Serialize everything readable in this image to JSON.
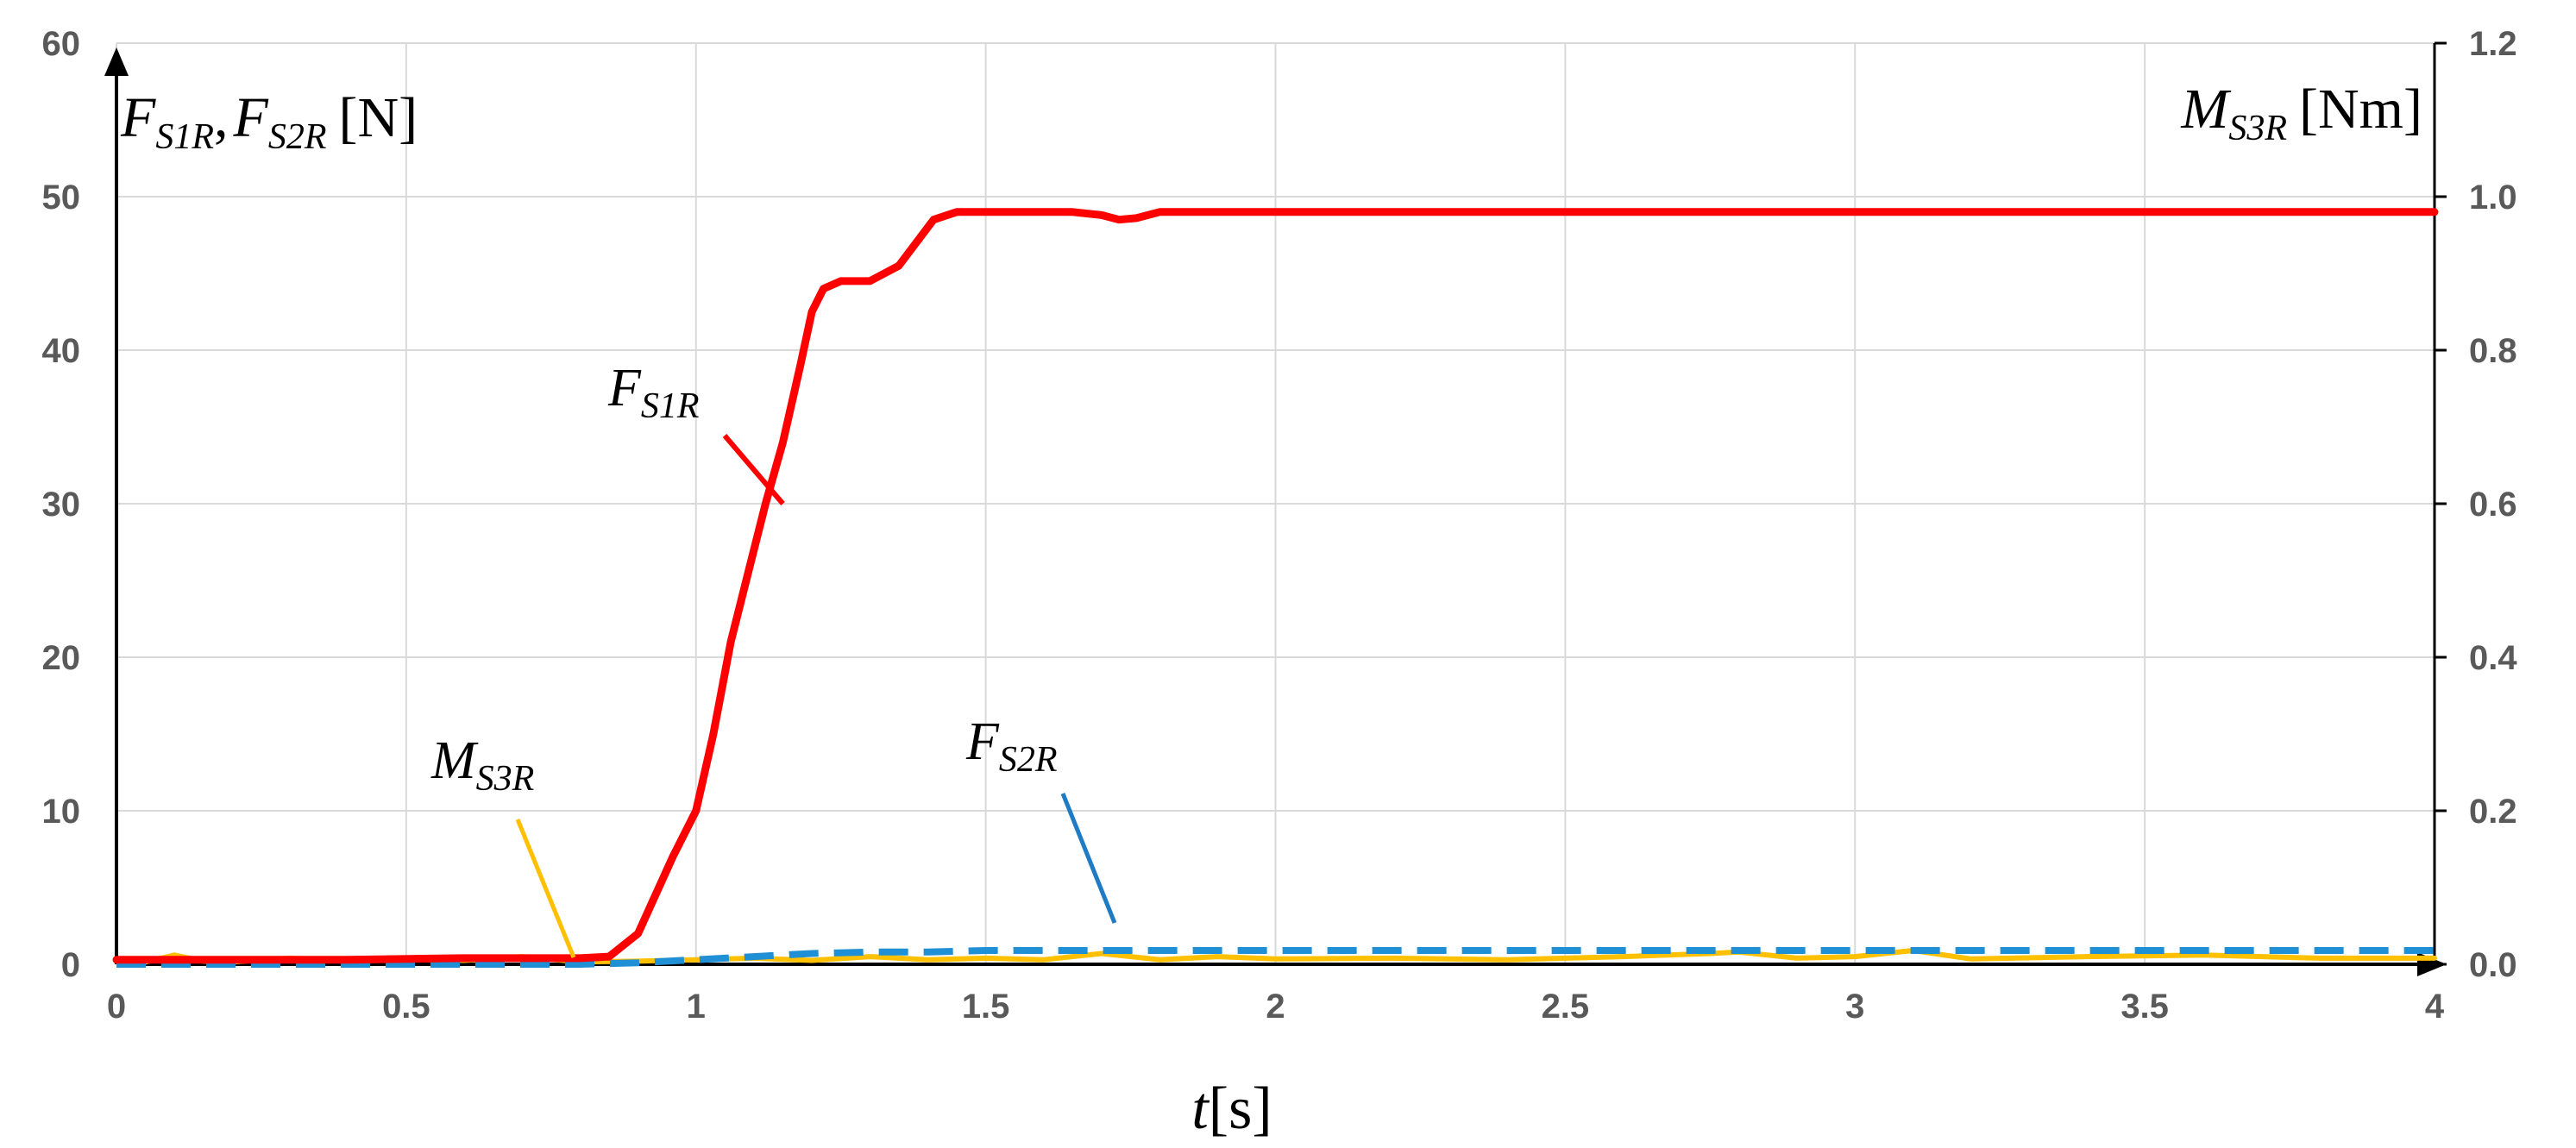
{
  "chart_data": {
    "type": "line",
    "xlabel": {
      "var": "t",
      "unit": "[s]"
    },
    "ylabel_left": {
      "var1": "F",
      "sub1": "S1R",
      "sep": ",",
      "var2": "F",
      "sub2": "S2R",
      "unit": "[N]"
    },
    "ylabel_right": {
      "var": "M",
      "sub": "S3R",
      "unit": "[Nm]"
    },
    "xlim": [
      0,
      4
    ],
    "ylim_left": [
      0,
      60
    ],
    "ylim_right": [
      0,
      1.2
    ],
    "x_ticks": [
      "0",
      "0.5",
      "1",
      "1.5",
      "2",
      "2.5",
      "3",
      "3.5",
      "4"
    ],
    "x_tick_values": [
      0,
      0.5,
      1,
      1.5,
      2,
      2.5,
      3,
      3.5,
      4
    ],
    "y_ticks_left": [
      "0",
      "10",
      "20",
      "30",
      "40",
      "50",
      "60"
    ],
    "y_tick_values_left": [
      0,
      10,
      20,
      30,
      40,
      50,
      60
    ],
    "y_ticks_right": [
      "0.0",
      "0.2",
      "0.4",
      "0.6",
      "0.8",
      "1.0",
      "1.2"
    ],
    "y_tick_values_right": [
      0,
      0.2,
      0.4,
      0.6,
      0.8,
      1.0,
      1.2
    ],
    "grid": true,
    "series": [
      {
        "name": "FS1R",
        "axis": "left",
        "color": "#ff0000",
        "style": "solid",
        "x": [
          0,
          0.2,
          0.4,
          0.6,
          0.8,
          0.85,
          0.9,
          0.93,
          0.96,
          1.0,
          1.03,
          1.06,
          1.09,
          1.12,
          1.15,
          1.18,
          1.2,
          1.22,
          1.25,
          1.3,
          1.35,
          1.38,
          1.41,
          1.45,
          1.5,
          1.6,
          1.65,
          1.7,
          1.73,
          1.76,
          1.8,
          1.85,
          2.0,
          2.2,
          2.5,
          3.0,
          3.5,
          4.0
        ],
        "y": [
          0.3,
          0.3,
          0.3,
          0.4,
          0.4,
          0.5,
          2.0,
          4.5,
          7.0,
          10.0,
          15.0,
          21.0,
          25.5,
          30.0,
          34.0,
          39.0,
          42.5,
          44.0,
          44.5,
          44.5,
          45.5,
          47.0,
          48.5,
          49.0,
          49.0,
          49.0,
          49.0,
          48.8,
          48.5,
          48.6,
          49.0,
          49.0,
          49.0,
          49.0,
          49.0,
          49.0,
          49.0,
          49.0
        ]
      },
      {
        "name": "FS2R",
        "axis": "left",
        "color": "#1f8fd6",
        "style": "dashed",
        "x": [
          0,
          0.2,
          0.4,
          0.6,
          0.8,
          0.9,
          1.0,
          1.1,
          1.2,
          1.3,
          1.4,
          1.5,
          1.6,
          2.0,
          2.5,
          3.0,
          3.5,
          4.0
        ],
        "y": [
          0.0,
          0.0,
          0.0,
          0.0,
          0.0,
          0.1,
          0.3,
          0.5,
          0.7,
          0.8,
          0.8,
          0.9,
          0.9,
          0.9,
          0.9,
          0.9,
          0.9,
          0.9
        ]
      },
      {
        "name": "MS3R",
        "axis": "right",
        "color": "#ffc000",
        "style": "solid",
        "x": [
          0,
          0.05,
          0.1,
          0.15,
          0.2,
          0.3,
          0.4,
          0.5,
          0.6,
          0.7,
          0.8,
          0.9,
          1.0,
          1.1,
          1.2,
          1.3,
          1.4,
          1.5,
          1.6,
          1.7,
          1.8,
          1.9,
          2.0,
          2.2,
          2.4,
          2.6,
          2.75,
          2.8,
          2.9,
          3.0,
          3.1,
          3.2,
          3.4,
          3.6,
          3.8,
          4.0
        ],
        "y": [
          0.005,
          0.003,
          0.012,
          0.004,
          0.003,
          0.008,
          0.004,
          0.006,
          0.005,
          0.01,
          0.003,
          0.004,
          0.006,
          0.008,
          0.005,
          0.01,
          0.006,
          0.008,
          0.006,
          0.014,
          0.006,
          0.01,
          0.007,
          0.008,
          0.006,
          0.01,
          0.014,
          0.016,
          0.008,
          0.01,
          0.018,
          0.007,
          0.01,
          0.012,
          0.008,
          0.008
        ]
      }
    ],
    "annotations": [
      {
        "var": "F",
        "sub": "S1R",
        "series": "FS1R"
      },
      {
        "var": "F",
        "sub": "S2R",
        "series": "FS2R"
      },
      {
        "var": "M",
        "sub": "S3R",
        "series": "MS3R"
      }
    ]
  }
}
